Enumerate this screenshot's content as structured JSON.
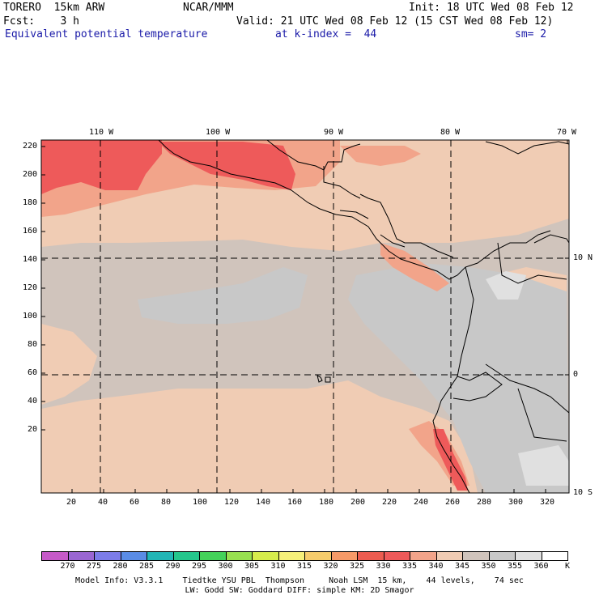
{
  "header": {
    "model": "TORERO  15km ARW",
    "org": "NCAR/MMM",
    "init": "Init: 18 UTC Wed 08 Feb 12",
    "fcst": "Fcst:    3 h",
    "valid": "Valid: 21 UTC Wed 08 Feb 12 (15 CST Wed 08 Feb 12)",
    "field": "Equivalent potential temperature",
    "level": "at k-index =  44",
    "smooth": "sm= 2"
  },
  "axes": {
    "top_lon": [
      "110 W",
      "100 W",
      "90 W",
      "80 W",
      "70 W"
    ],
    "right_lat": [
      "10 N",
      "0",
      "10 S"
    ],
    "left_y": [
      "220",
      "200",
      "180",
      "160",
      "140",
      "120",
      "100",
      "80",
      "60",
      "40",
      "20"
    ],
    "bottom_x": [
      "20",
      "40",
      "60",
      "80",
      "100",
      "120",
      "140",
      "160",
      "180",
      "200",
      "220",
      "240",
      "260",
      "280",
      "300",
      "320"
    ]
  },
  "colorbar": {
    "labels": [
      "270",
      "275",
      "280",
      "285",
      "290",
      "295",
      "300",
      "305",
      "310",
      "315",
      "320",
      "325",
      "330",
      "335",
      "340",
      "345",
      "350",
      "355",
      "360"
    ],
    "unit": "K",
    "colors": [
      "#c65ac8",
      "#9a66d2",
      "#7c7ce8",
      "#5a8ce6",
      "#22b6b6",
      "#24c68c",
      "#44d25a",
      "#98e050",
      "#d6ec4c",
      "#f6f07a",
      "#f6cc6c",
      "#f69a68",
      "#ec5c50",
      "#ee5a5a",
      "#f2a48a",
      "#f0ccb4",
      "#d0c4bc",
      "#c8c8c8",
      "#e0e0e0",
      "#ffffff"
    ]
  },
  "footer": {
    "line1": "Model Info: V3.3.1    Tiedtke YSU PBL  Thompson     Noah LSM  15 km,    44 levels,    74 sec",
    "line2": "LW: Godd SW: Goddard DIFF: simple KM: 2D Smagor"
  }
}
